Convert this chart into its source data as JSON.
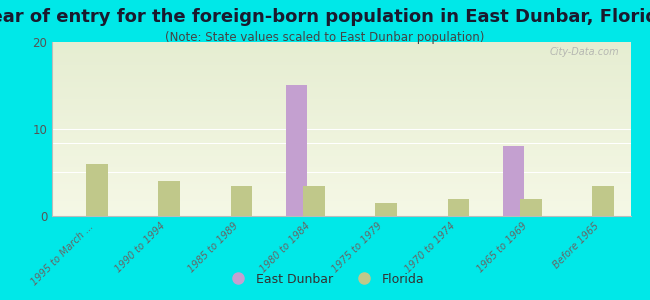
{
  "title": "Year of entry for the foreign-born population in East Dunbar, Florida",
  "subtitle": "(Note: State values scaled to East Dunbar population)",
  "categories": [
    "1995 to March ...",
    "1990 to 1994",
    "1985 to 1989",
    "1980 to 1984",
    "1975 to 1979",
    "1970 to 1974",
    "1965 to 1969",
    "Before 1965"
  ],
  "east_dunbar": [
    0,
    0,
    0,
    15,
    0,
    0,
    8,
    0
  ],
  "florida": [
    6,
    4,
    3.5,
    3.5,
    1.5,
    2,
    2,
    3.5
  ],
  "east_dunbar_color": "#c4a0d0",
  "florida_color": "#c0c88a",
  "background_color": "#00e8e8",
  "ylim": [
    0,
    20
  ],
  "yticks": [
    0,
    10,
    20
  ],
  "bar_width": 0.3,
  "title_fontsize": 13,
  "subtitle_fontsize": 8.5,
  "watermark": "City-Data.com"
}
